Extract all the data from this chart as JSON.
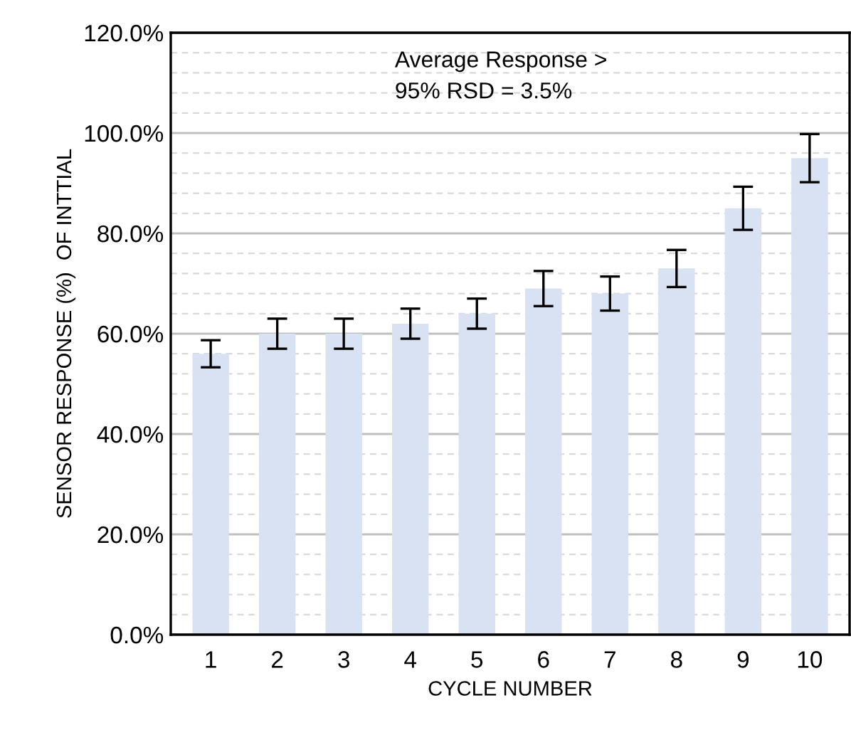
{
  "chart_data": {
    "type": "bar",
    "xlabel": "CYCLE NUMBER",
    "ylabel": "SENSOR RESPONSE (%)  OF INTTIAL",
    "categories": [
      "1",
      "2",
      "3",
      "4",
      "5",
      "6",
      "7",
      "8",
      "9",
      "10"
    ],
    "values": [
      56,
      60,
      60,
      62,
      64,
      69,
      68,
      73,
      85,
      95
    ],
    "errors": [
      2.7,
      3,
      3,
      3,
      3,
      3.5,
      3.4,
      3.7,
      4.3,
      4.8
    ],
    "color": "#d9e2f3",
    "ylim": [
      0,
      120
    ],
    "yticks": [
      {
        "value": 0,
        "label": "0.0%"
      },
      {
        "value": 20,
        "label": "20.0%"
      },
      {
        "value": 40,
        "label": "40.0%"
      },
      {
        "value": 60,
        "label": "60.0%"
      },
      {
        "value": 80,
        "label": "80.0%"
      },
      {
        "value": 100,
        "label": "100.0%"
      },
      {
        "value": 120,
        "label": "120.0%"
      }
    ],
    "grid": "y",
    "annotations": [
      "Average Response >\n95% RSD = 3.5%"
    ]
  }
}
